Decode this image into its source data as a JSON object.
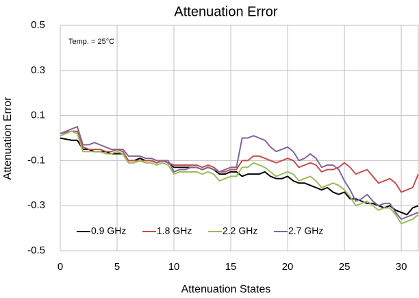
{
  "chart_data": {
    "type": "line",
    "title": "Attenuation Error",
    "xlabel": "Attenuation States",
    "ylabel": "Attenuation Error",
    "annotation": "Temp. = 25°C",
    "x": [
      0,
      0.5,
      1,
      1.5,
      2,
      2.5,
      3,
      3.5,
      4,
      4.5,
      5,
      5.5,
      6,
      6.5,
      7,
      7.5,
      8,
      8.5,
      9,
      9.5,
      10,
      10.5,
      11,
      11.5,
      12,
      12.5,
      13,
      13.5,
      14,
      14.5,
      15,
      15.5,
      16,
      16.5,
      17,
      17.5,
      18,
      18.5,
      19,
      19.5,
      20,
      20.5,
      21,
      21.5,
      22,
      22.5,
      23,
      23.5,
      24,
      24.5,
      25,
      25.5,
      26,
      26.5,
      27,
      27.5,
      28,
      28.5,
      29,
      29.5,
      30,
      30.5,
      31,
      31.5
    ],
    "series": [
      {
        "name": "0.9 GHz",
        "color": "#000000",
        "values": [
          0,
          -0.005,
          -0.01,
          -0.01,
          -0.05,
          -0.05,
          -0.06,
          -0.06,
          -0.06,
          -0.07,
          -0.07,
          -0.07,
          -0.1,
          -0.1,
          -0.09,
          -0.1,
          -0.1,
          -0.11,
          -0.1,
          -0.11,
          -0.13,
          -0.13,
          -0.13,
          -0.13,
          -0.13,
          -0.14,
          -0.13,
          -0.14,
          -0.16,
          -0.16,
          -0.15,
          -0.15,
          -0.17,
          -0.16,
          -0.16,
          -0.16,
          -0.15,
          -0.17,
          -0.18,
          -0.18,
          -0.17,
          -0.19,
          -0.2,
          -0.2,
          -0.21,
          -0.22,
          -0.23,
          -0.22,
          -0.24,
          -0.25,
          -0.24,
          -0.27,
          -0.27,
          -0.28,
          -0.29,
          -0.29,
          -0.3,
          -0.31,
          -0.3,
          -0.32,
          -0.33,
          -0.34,
          -0.31,
          -0.3
        ]
      },
      {
        "name": "1.8 GHz",
        "color": "#c0504d",
        "values": [
          0.02,
          0.025,
          0.03,
          0.03,
          -0.04,
          -0.05,
          -0.05,
          -0.05,
          -0.06,
          -0.06,
          -0.05,
          -0.06,
          -0.1,
          -0.1,
          -0.1,
          -0.1,
          -0.1,
          -0.11,
          -0.1,
          -0.11,
          -0.12,
          -0.12,
          -0.12,
          -0.12,
          -0.12,
          -0.13,
          -0.12,
          -0.13,
          -0.15,
          -0.15,
          -0.14,
          -0.14,
          -0.1,
          -0.1,
          -0.08,
          -0.08,
          -0.09,
          -0.1,
          -0.11,
          -0.1,
          -0.09,
          -0.1,
          -0.13,
          -0.12,
          -0.11,
          -0.12,
          -0.15,
          -0.14,
          -0.14,
          -0.13,
          -0.11,
          -0.13,
          -0.16,
          -0.15,
          -0.14,
          -0.17,
          -0.2,
          -0.19,
          -0.18,
          -0.2,
          -0.24,
          -0.23,
          -0.22,
          -0.16
        ]
      },
      {
        "name": "2.2 GHz",
        "color": "#9bbb59",
        "values": [
          0.01,
          0.02,
          0.03,
          0.02,
          -0.06,
          -0.06,
          -0.06,
          -0.06,
          -0.07,
          -0.07,
          -0.06,
          -0.07,
          -0.11,
          -0.11,
          -0.1,
          -0.11,
          -0.11,
          -0.12,
          -0.11,
          -0.12,
          -0.16,
          -0.15,
          -0.15,
          -0.15,
          -0.15,
          -0.16,
          -0.15,
          -0.16,
          -0.19,
          -0.18,
          -0.17,
          -0.17,
          -0.13,
          -0.13,
          -0.11,
          -0.12,
          -0.13,
          -0.15,
          -0.17,
          -0.16,
          -0.15,
          -0.16,
          -0.19,
          -0.18,
          -0.17,
          -0.19,
          -0.22,
          -0.21,
          -0.2,
          -0.21,
          -0.23,
          -0.26,
          -0.3,
          -0.29,
          -0.28,
          -0.3,
          -0.32,
          -0.31,
          -0.31,
          -0.34,
          -0.38,
          -0.37,
          -0.36,
          -0.34
        ]
      },
      {
        "name": "2.7 GHz",
        "color": "#8064a2",
        "values": [
          0.02,
          0.03,
          0.04,
          0.05,
          -0.03,
          -0.03,
          -0.02,
          -0.03,
          -0.04,
          -0.05,
          -0.05,
          -0.05,
          -0.08,
          -0.08,
          -0.08,
          -0.09,
          -0.09,
          -0.1,
          -0.1,
          -0.1,
          -0.15,
          -0.14,
          -0.14,
          -0.13,
          -0.13,
          -0.14,
          -0.13,
          -0.14,
          -0.15,
          -0.14,
          -0.13,
          -0.13,
          0,
          0,
          0.01,
          0,
          -0.01,
          -0.04,
          -0.06,
          -0.05,
          -0.04,
          -0.06,
          -0.1,
          -0.09,
          -0.07,
          -0.09,
          -0.13,
          -0.12,
          -0.12,
          -0.14,
          -0.19,
          -0.23,
          -0.28,
          -0.27,
          -0.25,
          -0.28,
          -0.3,
          -0.29,
          -0.29,
          -0.33,
          -0.36,
          -0.35,
          -0.34,
          -0.33
        ]
      }
    ],
    "xlim": [
      0,
      31.5
    ],
    "xticks": [
      0,
      5,
      10,
      15,
      20,
      25,
      30
    ],
    "ylim": [
      -0.5,
      0.5
    ],
    "yticks": [
      -0.5,
      -0.3,
      -0.1,
      0.1,
      0.3,
      0.5
    ],
    "grid": true,
    "legend": "bottom"
  }
}
